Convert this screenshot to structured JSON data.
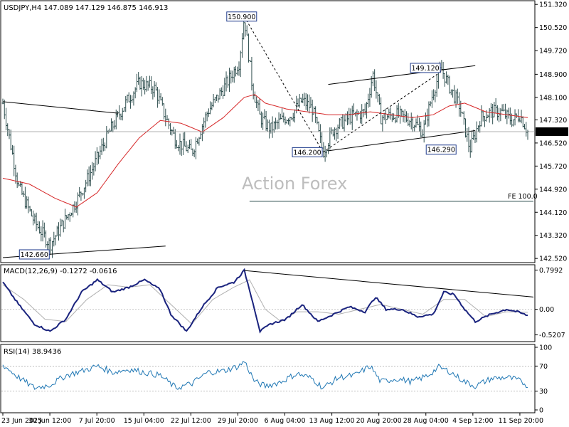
{
  "header": {
    "symbol_line": "USDJPY,H4  147.089 147.129 146.875 146.913",
    "macd_line": "MACD(12,26,9) -0.1272 -0.0616",
    "rsi_line": "RSI(14) 38.9436"
  },
  "watermark": "Action Forex",
  "chart_data": {
    "type": "candlestick",
    "symbol": "USDJPY",
    "timeframe": "H4",
    "ohlc_last": {
      "open": 147.089,
      "high": 147.129,
      "low": 146.875,
      "close": 146.913
    },
    "price_axis": {
      "ticks": [
        "151.320",
        "150.520",
        "149.720",
        "148.900",
        "148.100",
        "147.320",
        "146.520",
        "145.720",
        "144.920",
        "144.120",
        "143.320",
        "142.520"
      ],
      "ylim": [
        142.45,
        151.35
      ],
      "current_price": "146.913"
    },
    "time_axis": {
      "ticks": [
        "23 Jun 2025",
        "30 Jun 12:00",
        "7 Jul 20:00",
        "15 Jul 04:00",
        "22 Jul 12:00",
        "29 Jul 20:00",
        "6 Aug 04:00",
        "13 Aug 12:00",
        "20 Aug 20:00",
        "28 Aug 04:00",
        "4 Sep 12:00",
        "11 Sep 20:00"
      ]
    },
    "price_path": [
      [
        0,
        147.9
      ],
      [
        0.03,
        145.0
      ],
      [
        0.06,
        143.8
      ],
      [
        0.09,
        143.0
      ],
      [
        0.11,
        143.6
      ],
      [
        0.14,
        144.5
      ],
      [
        0.17,
        145.6
      ],
      [
        0.2,
        146.8
      ],
      [
        0.23,
        147.8
      ],
      [
        0.26,
        148.6
      ],
      [
        0.29,
        148.4
      ],
      [
        0.31,
        147.4
      ],
      [
        0.33,
        146.6
      ],
      [
        0.36,
        146.2
      ],
      [
        0.39,
        147.6
      ],
      [
        0.42,
        148.4
      ],
      [
        0.45,
        149.3
      ],
      [
        0.46,
        150.9
      ],
      [
        0.475,
        148.5
      ],
      [
        0.49,
        147.4
      ],
      [
        0.51,
        147.0
      ],
      [
        0.53,
        147.3
      ],
      [
        0.55,
        147.5
      ],
      [
        0.57,
        148.0
      ],
      [
        0.59,
        147.7
      ],
      [
        0.61,
        146.2
      ],
      [
        0.63,
        147.0
      ],
      [
        0.66,
        147.4
      ],
      [
        0.69,
        147.6
      ],
      [
        0.705,
        148.9
      ],
      [
        0.72,
        147.4
      ],
      [
        0.75,
        147.5
      ],
      [
        0.78,
        147.3
      ],
      [
        0.8,
        146.9
      ],
      [
        0.82,
        148.3
      ],
      [
        0.835,
        149.1
      ],
      [
        0.85,
        148.5
      ],
      [
        0.87,
        147.8
      ],
      [
        0.89,
        146.29
      ],
      [
        0.91,
        147.4
      ],
      [
        0.93,
        147.6
      ],
      [
        0.95,
        147.6
      ],
      [
        0.97,
        147.3
      ],
      [
        0.985,
        147.5
      ],
      [
        1.0,
        146.913
      ]
    ],
    "moving_average": [
      [
        0,
        145.3
      ],
      [
        0.05,
        145.1
      ],
      [
        0.1,
        144.6
      ],
      [
        0.14,
        144.3
      ],
      [
        0.18,
        144.8
      ],
      [
        0.22,
        145.8
      ],
      [
        0.26,
        146.7
      ],
      [
        0.3,
        147.3
      ],
      [
        0.34,
        147.2
      ],
      [
        0.38,
        146.9
      ],
      [
        0.42,
        147.4
      ],
      [
        0.46,
        148.1
      ],
      [
        0.48,
        148.2
      ],
      [
        0.5,
        147.9
      ],
      [
        0.54,
        147.7
      ],
      [
        0.58,
        147.6
      ],
      [
        0.62,
        147.5
      ],
      [
        0.66,
        147.5
      ],
      [
        0.7,
        147.6
      ],
      [
        0.74,
        147.5
      ],
      [
        0.78,
        147.4
      ],
      [
        0.82,
        147.5
      ],
      [
        0.85,
        147.8
      ],
      [
        0.88,
        147.9
      ],
      [
        0.92,
        147.6
      ],
      [
        0.96,
        147.5
      ],
      [
        1.0,
        147.4
      ]
    ],
    "annotations": [
      {
        "label": "150.900",
        "t": 0.455,
        "price": 150.9
      },
      {
        "label": "149.120",
        "t": 0.805,
        "price": 149.12
      },
      {
        "label": "146.200",
        "t": 0.58,
        "price": 146.2
      },
      {
        "label": "146.290",
        "t": 0.835,
        "price": 146.29
      },
      {
        "label": "142.660",
        "t": 0.06,
        "price": 142.66
      }
    ],
    "fe_level": {
      "label": "FE 100.0",
      "price": 144.5
    },
    "macd": {
      "ticks": [
        "0.7992",
        "0.00",
        "-0.5207"
      ],
      "ylim": [
        -0.6,
        0.85
      ],
      "zero": 0.0,
      "line": [
        [
          0,
          0.55
        ],
        [
          0.03,
          0.1
        ],
        [
          0.06,
          -0.3
        ],
        [
          0.09,
          -0.45
        ],
        [
          0.12,
          -0.2
        ],
        [
          0.15,
          0.35
        ],
        [
          0.18,
          0.6
        ],
        [
          0.21,
          0.35
        ],
        [
          0.24,
          0.45
        ],
        [
          0.27,
          0.6
        ],
        [
          0.3,
          0.4
        ],
        [
          0.32,
          -0.1
        ],
        [
          0.35,
          -0.45
        ],
        [
          0.38,
          0.05
        ],
        [
          0.41,
          0.45
        ],
        [
          0.44,
          0.55
        ],
        [
          0.46,
          0.79
        ],
        [
          0.475,
          0.2
        ],
        [
          0.49,
          -0.45
        ],
        [
          0.51,
          -0.3
        ],
        [
          0.54,
          -0.2
        ],
        [
          0.57,
          0.1
        ],
        [
          0.6,
          -0.25
        ],
        [
          0.63,
          -0.1
        ],
        [
          0.66,
          0.05
        ],
        [
          0.69,
          -0.05
        ],
        [
          0.71,
          0.25
        ],
        [
          0.73,
          0.0
        ],
        [
          0.76,
          0.0
        ],
        [
          0.79,
          -0.15
        ],
        [
          0.82,
          -0.1
        ],
        [
          0.84,
          0.35
        ],
        [
          0.86,
          0.3
        ],
        [
          0.88,
          0.0
        ],
        [
          0.9,
          -0.25
        ],
        [
          0.93,
          -0.1
        ],
        [
          0.96,
          0.0
        ],
        [
          0.98,
          -0.05
        ],
        [
          1.0,
          -0.127
        ]
      ],
      "signal": [
        [
          0,
          0.5
        ],
        [
          0.04,
          0.2
        ],
        [
          0.08,
          -0.2
        ],
        [
          0.12,
          -0.25
        ],
        [
          0.16,
          0.2
        ],
        [
          0.2,
          0.5
        ],
        [
          0.24,
          0.45
        ],
        [
          0.28,
          0.5
        ],
        [
          0.32,
          0.1
        ],
        [
          0.36,
          -0.3
        ],
        [
          0.4,
          0.2
        ],
        [
          0.44,
          0.45
        ],
        [
          0.47,
          0.6
        ],
        [
          0.5,
          0.0
        ],
        [
          0.53,
          -0.25
        ],
        [
          0.56,
          -0.05
        ],
        [
          0.6,
          -0.05
        ],
        [
          0.64,
          -0.1
        ],
        [
          0.68,
          0.0
        ],
        [
          0.72,
          0.1
        ],
        [
          0.76,
          0.0
        ],
        [
          0.8,
          -0.1
        ],
        [
          0.84,
          0.2
        ],
        [
          0.88,
          0.2
        ],
        [
          0.92,
          -0.15
        ],
        [
          0.96,
          -0.05
        ],
        [
          1.0,
          -0.06
        ]
      ],
      "trendline": [
        [
          0.46,
          0.79
        ],
        [
          1.0,
          0.25
        ]
      ]
    },
    "rsi": {
      "ticks": [
        "100",
        "70",
        "30",
        "0"
      ],
      "ylim": [
        0,
        100
      ],
      "levels": [
        70,
        30
      ],
      "line": [
        [
          0,
          72
        ],
        [
          0.03,
          52
        ],
        [
          0.06,
          35
        ],
        [
          0.09,
          40
        ],
        [
          0.12,
          55
        ],
        [
          0.15,
          62
        ],
        [
          0.18,
          70
        ],
        [
          0.21,
          60
        ],
        [
          0.24,
          65
        ],
        [
          0.27,
          60
        ],
        [
          0.3,
          55
        ],
        [
          0.33,
          35
        ],
        [
          0.36,
          42
        ],
        [
          0.39,
          60
        ],
        [
          0.42,
          62
        ],
        [
          0.45,
          70
        ],
        [
          0.46,
          78
        ],
        [
          0.48,
          45
        ],
        [
          0.5,
          38
        ],
        [
          0.53,
          45
        ],
        [
          0.56,
          58
        ],
        [
          0.59,
          50
        ],
        [
          0.61,
          35
        ],
        [
          0.64,
          52
        ],
        [
          0.67,
          55
        ],
        [
          0.7,
          70
        ],
        [
          0.72,
          45
        ],
        [
          0.75,
          50
        ],
        [
          0.78,
          45
        ],
        [
          0.81,
          55
        ],
        [
          0.83,
          68
        ],
        [
          0.85,
          62
        ],
        [
          0.88,
          45
        ],
        [
          0.9,
          38
        ],
        [
          0.93,
          50
        ],
        [
          0.96,
          52
        ],
        [
          0.98,
          48
        ],
        [
          1.0,
          39
        ]
      ]
    }
  }
}
